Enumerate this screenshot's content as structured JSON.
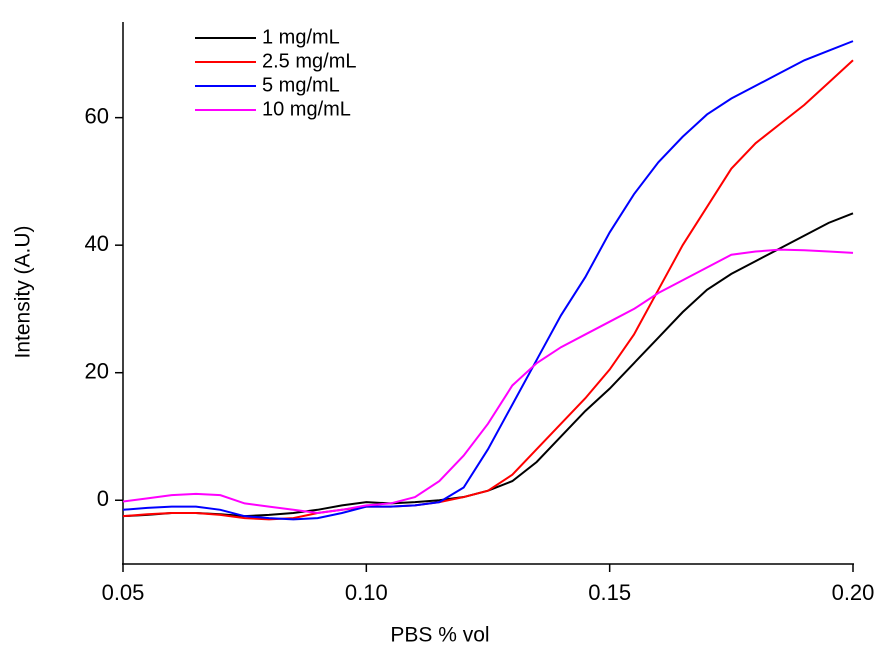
{
  "chart_data": {
    "type": "line",
    "x_label": "PBS % vol",
    "y_label": "Intensity (A.U)",
    "x": [
      0.05,
      0.055,
      0.06,
      0.065,
      0.07,
      0.075,
      0.08,
      0.085,
      0.09,
      0.095,
      0.1,
      0.105,
      0.11,
      0.115,
      0.12,
      0.125,
      0.13,
      0.135,
      0.14,
      0.145,
      0.15,
      0.155,
      0.16,
      0.165,
      0.17,
      0.175,
      0.18,
      0.185,
      0.19,
      0.195,
      0.2
    ],
    "series": [
      {
        "name": "1 mg/mL",
        "color": "#000000",
        "values": [
          -2.5,
          -2.3,
          -2,
          -2,
          -2.2,
          -2.5,
          -2.3,
          -2,
          -1.5,
          -0.8,
          -0.3,
          -0.5,
          -0.3,
          0,
          0.5,
          1.5,
          3,
          6,
          10,
          14,
          17.5,
          21.5,
          25.5,
          29.5,
          33,
          35.5,
          37.5,
          39.5,
          41.5,
          43.5,
          45
        ]
      },
      {
        "name": "2.5 mg/mL",
        "color": "#ff0000",
        "values": [
          -2.5,
          -2.2,
          -2,
          -2,
          -2.3,
          -2.8,
          -3,
          -2.8,
          -2,
          -1.5,
          -1,
          -1,
          -0.8,
          -0.3,
          0.5,
          1.5,
          4,
          8,
          12,
          16,
          20.5,
          26,
          33,
          40,
          46,
          52,
          56,
          59,
          62,
          65.5,
          69
        ]
      },
      {
        "name": "5 mg/mL",
        "color": "#0000ff",
        "values": [
          -1.5,
          -1.2,
          -1,
          -1,
          -1.5,
          -2.5,
          -2.8,
          -3,
          -2.8,
          -2,
          -1,
          -1,
          -0.8,
          -0.3,
          2,
          8,
          15,
          22,
          29,
          35,
          42,
          48,
          53,
          57,
          60.5,
          63,
          65,
          67,
          69,
          70.5,
          72
        ]
      },
      {
        "name": "10 mg/mL",
        "color": "#ff00ff",
        "values": [
          -0.2,
          0.3,
          0.8,
          1,
          0.8,
          -0.5,
          -1,
          -1.5,
          -2,
          -1.5,
          -0.8,
          -0.5,
          0.5,
          3,
          7,
          12,
          18,
          21.5,
          24,
          26,
          28,
          30,
          32.5,
          34.5,
          36.5,
          38.5,
          39,
          39.3,
          39.2,
          39,
          38.8
        ]
      }
    ],
    "xlim": [
      0.05,
      0.2
    ],
    "ylim": [
      -10,
      75
    ],
    "xticks": [
      0.05,
      {
        "value": 0.1,
        "label": "0.10"
      },
      0.15,
      {
        "value": 0.2,
        "label": "0.20"
      }
    ],
    "yticks": [
      0,
      20,
      40,
      60
    ],
    "legend": "top-left",
    "grid": false
  }
}
